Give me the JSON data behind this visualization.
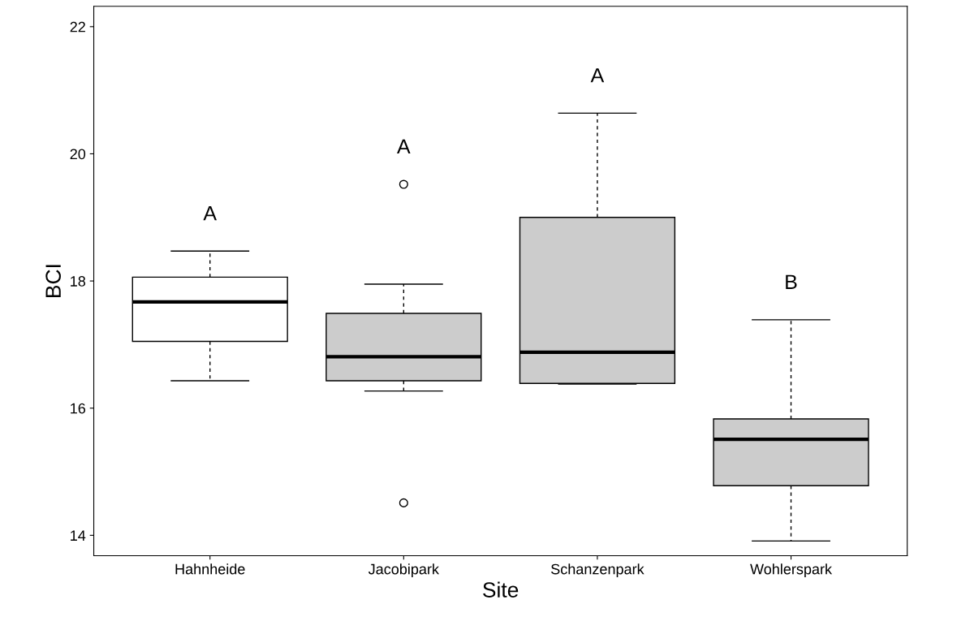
{
  "chart_data": {
    "type": "box",
    "xlabel": "Site",
    "ylabel": "BCI",
    "categories": [
      "Hahnheide",
      "Jacobipark",
      "Schanzenpark",
      "Wohlerspark"
    ],
    "colors": [
      "#ffffff",
      "#cccccc",
      "#cccccc",
      "#cccccc"
    ],
    "boxes": [
      {
        "low": 16.43,
        "q1": 17.05,
        "median": 17.67,
        "q3": 18.06,
        "high": 18.47
      },
      {
        "low": 16.27,
        "q1": 16.43,
        "median": 16.81,
        "q3": 17.49,
        "high": 17.95,
        "outliers": [
          19.52,
          14.51
        ]
      },
      {
        "low": 16.38,
        "q1": 16.39,
        "median": 16.88,
        "q3": 19.0,
        "high": 20.64
      },
      {
        "low": 13.91,
        "q1": 14.78,
        "median": 15.51,
        "q3": 15.83,
        "high": 17.39
      }
    ],
    "ylim": [
      13.68,
      22.32
    ],
    "yticks": [
      14,
      16,
      18,
      20,
      22
    ],
    "grid": false,
    "annotations": [
      "A",
      "A",
      "A",
      "B"
    ]
  }
}
